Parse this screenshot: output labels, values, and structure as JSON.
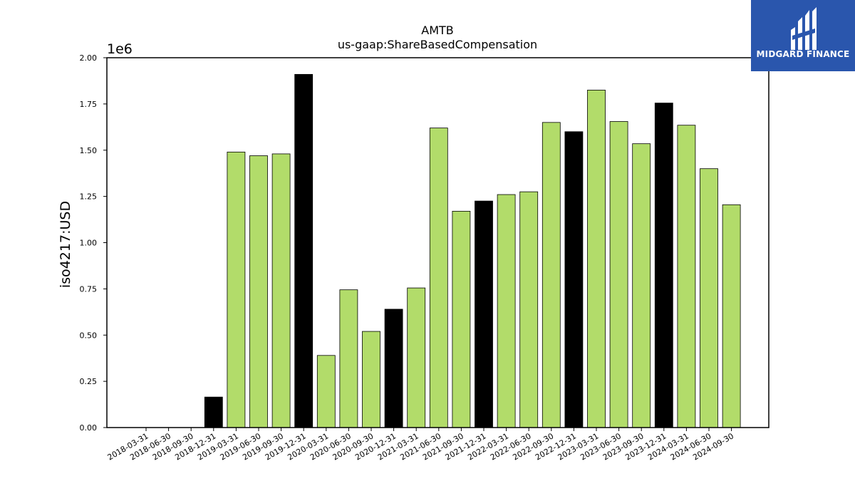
{
  "logo": {
    "text": "MIDGARD FINANCE",
    "background": "#2a56ad"
  },
  "chart_data": {
    "type": "bar",
    "title": "AMTB",
    "subtitle": "us-gaap:ShareBasedCompensation",
    "ylabel": "iso4217:USD",
    "y_scale_label": "1e6",
    "ylim": [
      0,
      2000000
    ],
    "yticks": [
      0,
      250000,
      500000,
      750000,
      1000000,
      1250000,
      1500000,
      1750000,
      2000000
    ],
    "ytick_labels": [
      "0.00",
      "0.25",
      "0.50",
      "0.75",
      "1.00",
      "1.25",
      "1.50",
      "1.75",
      "2.00"
    ],
    "colors": {
      "quarter": "#b2dc6a",
      "year_end": "#000000",
      "edge": "#000000"
    },
    "categories": [
      "2018-03-31",
      "2018-06-30",
      "2018-09-30",
      "2018-12-31",
      "2019-03-31",
      "2019-06-30",
      "2019-09-30",
      "2019-12-31",
      "2020-03-31",
      "2020-06-30",
      "2020-09-30",
      "2020-12-31",
      "2021-03-31",
      "2021-06-30",
      "2021-09-30",
      "2021-12-31",
      "2022-03-31",
      "2022-06-30",
      "2022-09-30",
      "2022-12-31",
      "2023-03-31",
      "2023-06-30",
      "2023-09-30",
      "2023-12-31",
      "2024-03-31",
      "2024-06-30",
      "2024-09-30"
    ],
    "values": [
      null,
      null,
      null,
      165000,
      1490000,
      1470000,
      1480000,
      1910000,
      390000,
      745000,
      520000,
      640000,
      755000,
      1620000,
      1170000,
      1225000,
      1260000,
      1275000,
      1650000,
      1600000,
      1825000,
      1655000,
      1535000,
      1755000,
      1635000,
      1400000,
      1205000
    ],
    "year_end": [
      false,
      false,
      false,
      true,
      false,
      false,
      false,
      true,
      false,
      false,
      false,
      true,
      false,
      false,
      false,
      true,
      false,
      false,
      false,
      true,
      false,
      false,
      false,
      true,
      false,
      false,
      false
    ]
  }
}
